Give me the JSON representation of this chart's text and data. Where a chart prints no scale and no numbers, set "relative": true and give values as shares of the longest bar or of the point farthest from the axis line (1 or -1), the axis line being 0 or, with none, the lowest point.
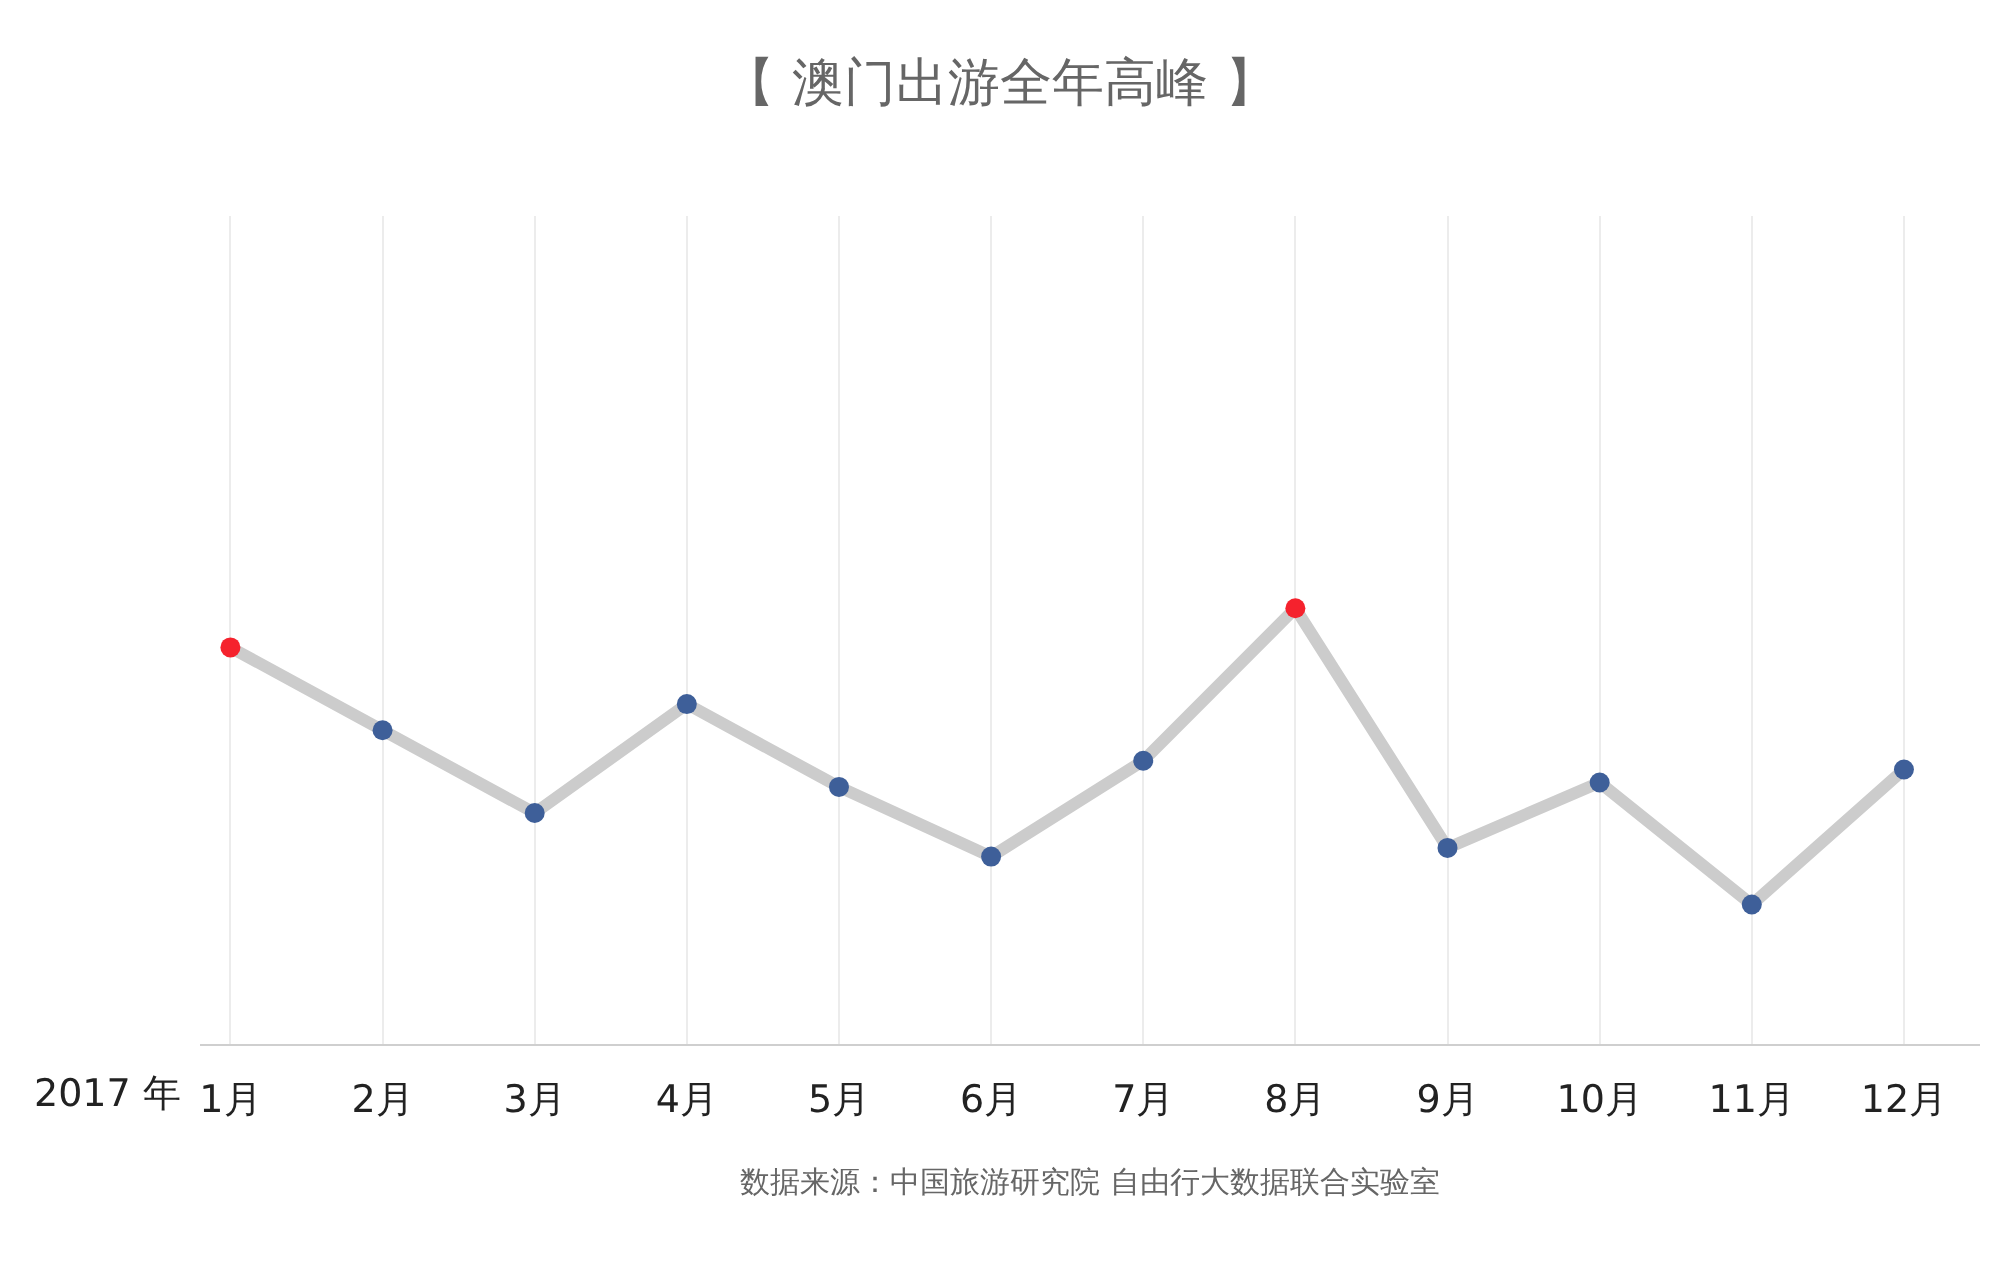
{
  "chart_data": {
    "type": "line",
    "title": "【 澳门出游全年高峰 】",
    "xlabel": "2017 年",
    "categories": [
      "1月",
      "2月",
      "3月",
      "4月",
      "5月",
      "6月",
      "7月",
      "8月",
      "9月",
      "10月",
      "11月",
      "12月"
    ],
    "relative": true,
    "series": [
      {
        "color": "#cccccc",
        "colors": [
          "#f5222d",
          "#3e5f99",
          "#3e5f99",
          "#3e5f99",
          "#3e5f99",
          "#3e5f99",
          "#3e5f99",
          "#f5222d",
          "#3e5f99",
          "#3e5f99",
          "#3e5f99",
          "#3e5f99"
        ],
        "values": [
          0.91,
          0.72,
          0.53,
          0.78,
          0.59,
          0.43,
          0.65,
          1,
          0.45,
          0.6,
          0.32,
          0.63
        ]
      }
    ],
    "marker": "circle",
    "grid": "x",
    "annotations": [
      "数据来源：中国旅游研究院 自由行大数据联合实验室"
    ]
  }
}
